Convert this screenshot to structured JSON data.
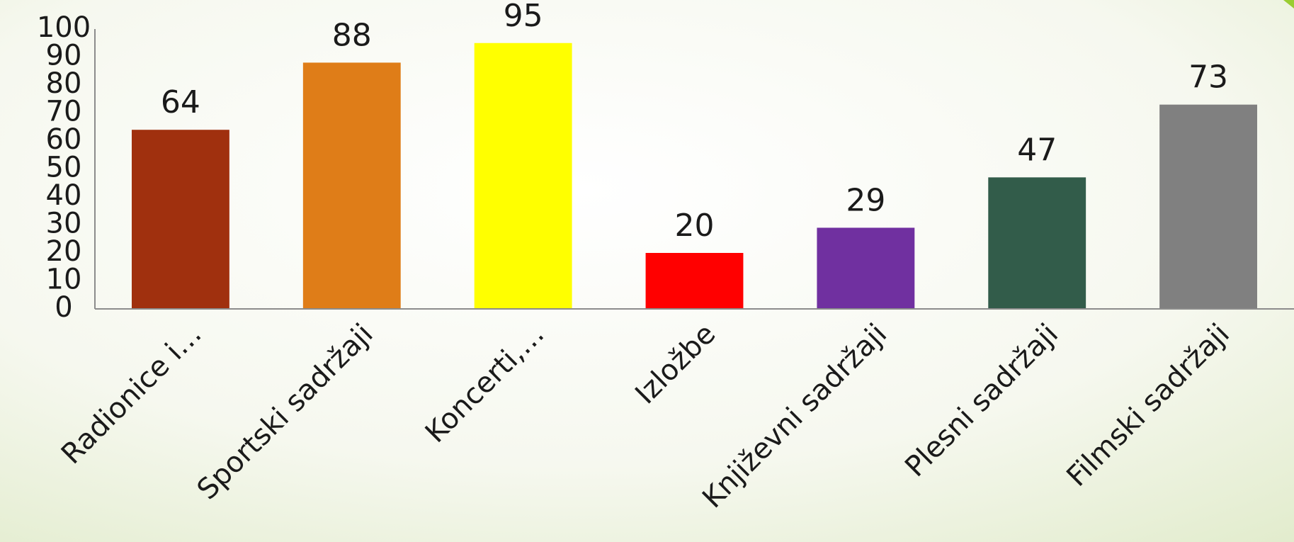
{
  "chart_data": {
    "type": "bar",
    "categories": [
      "Radionice i…",
      "Sportski sadržaji",
      "Koncerti,…",
      "Izložbe",
      "Književni sadržaji",
      "Plesni sadržaji",
      "Filmski sadržaji"
    ],
    "values": [
      64,
      88,
      95,
      20,
      29,
      47,
      73
    ],
    "colors": [
      "#a0300e",
      "#df7d18",
      "#ffff00",
      "#ff0000",
      "#7030a0",
      "#325c4a",
      "#808080"
    ],
    "ylim": [
      0,
      100
    ],
    "yticks": [
      0,
      10,
      20,
      30,
      40,
      50,
      60,
      70,
      80,
      90,
      100
    ],
    "grid": false
  }
}
